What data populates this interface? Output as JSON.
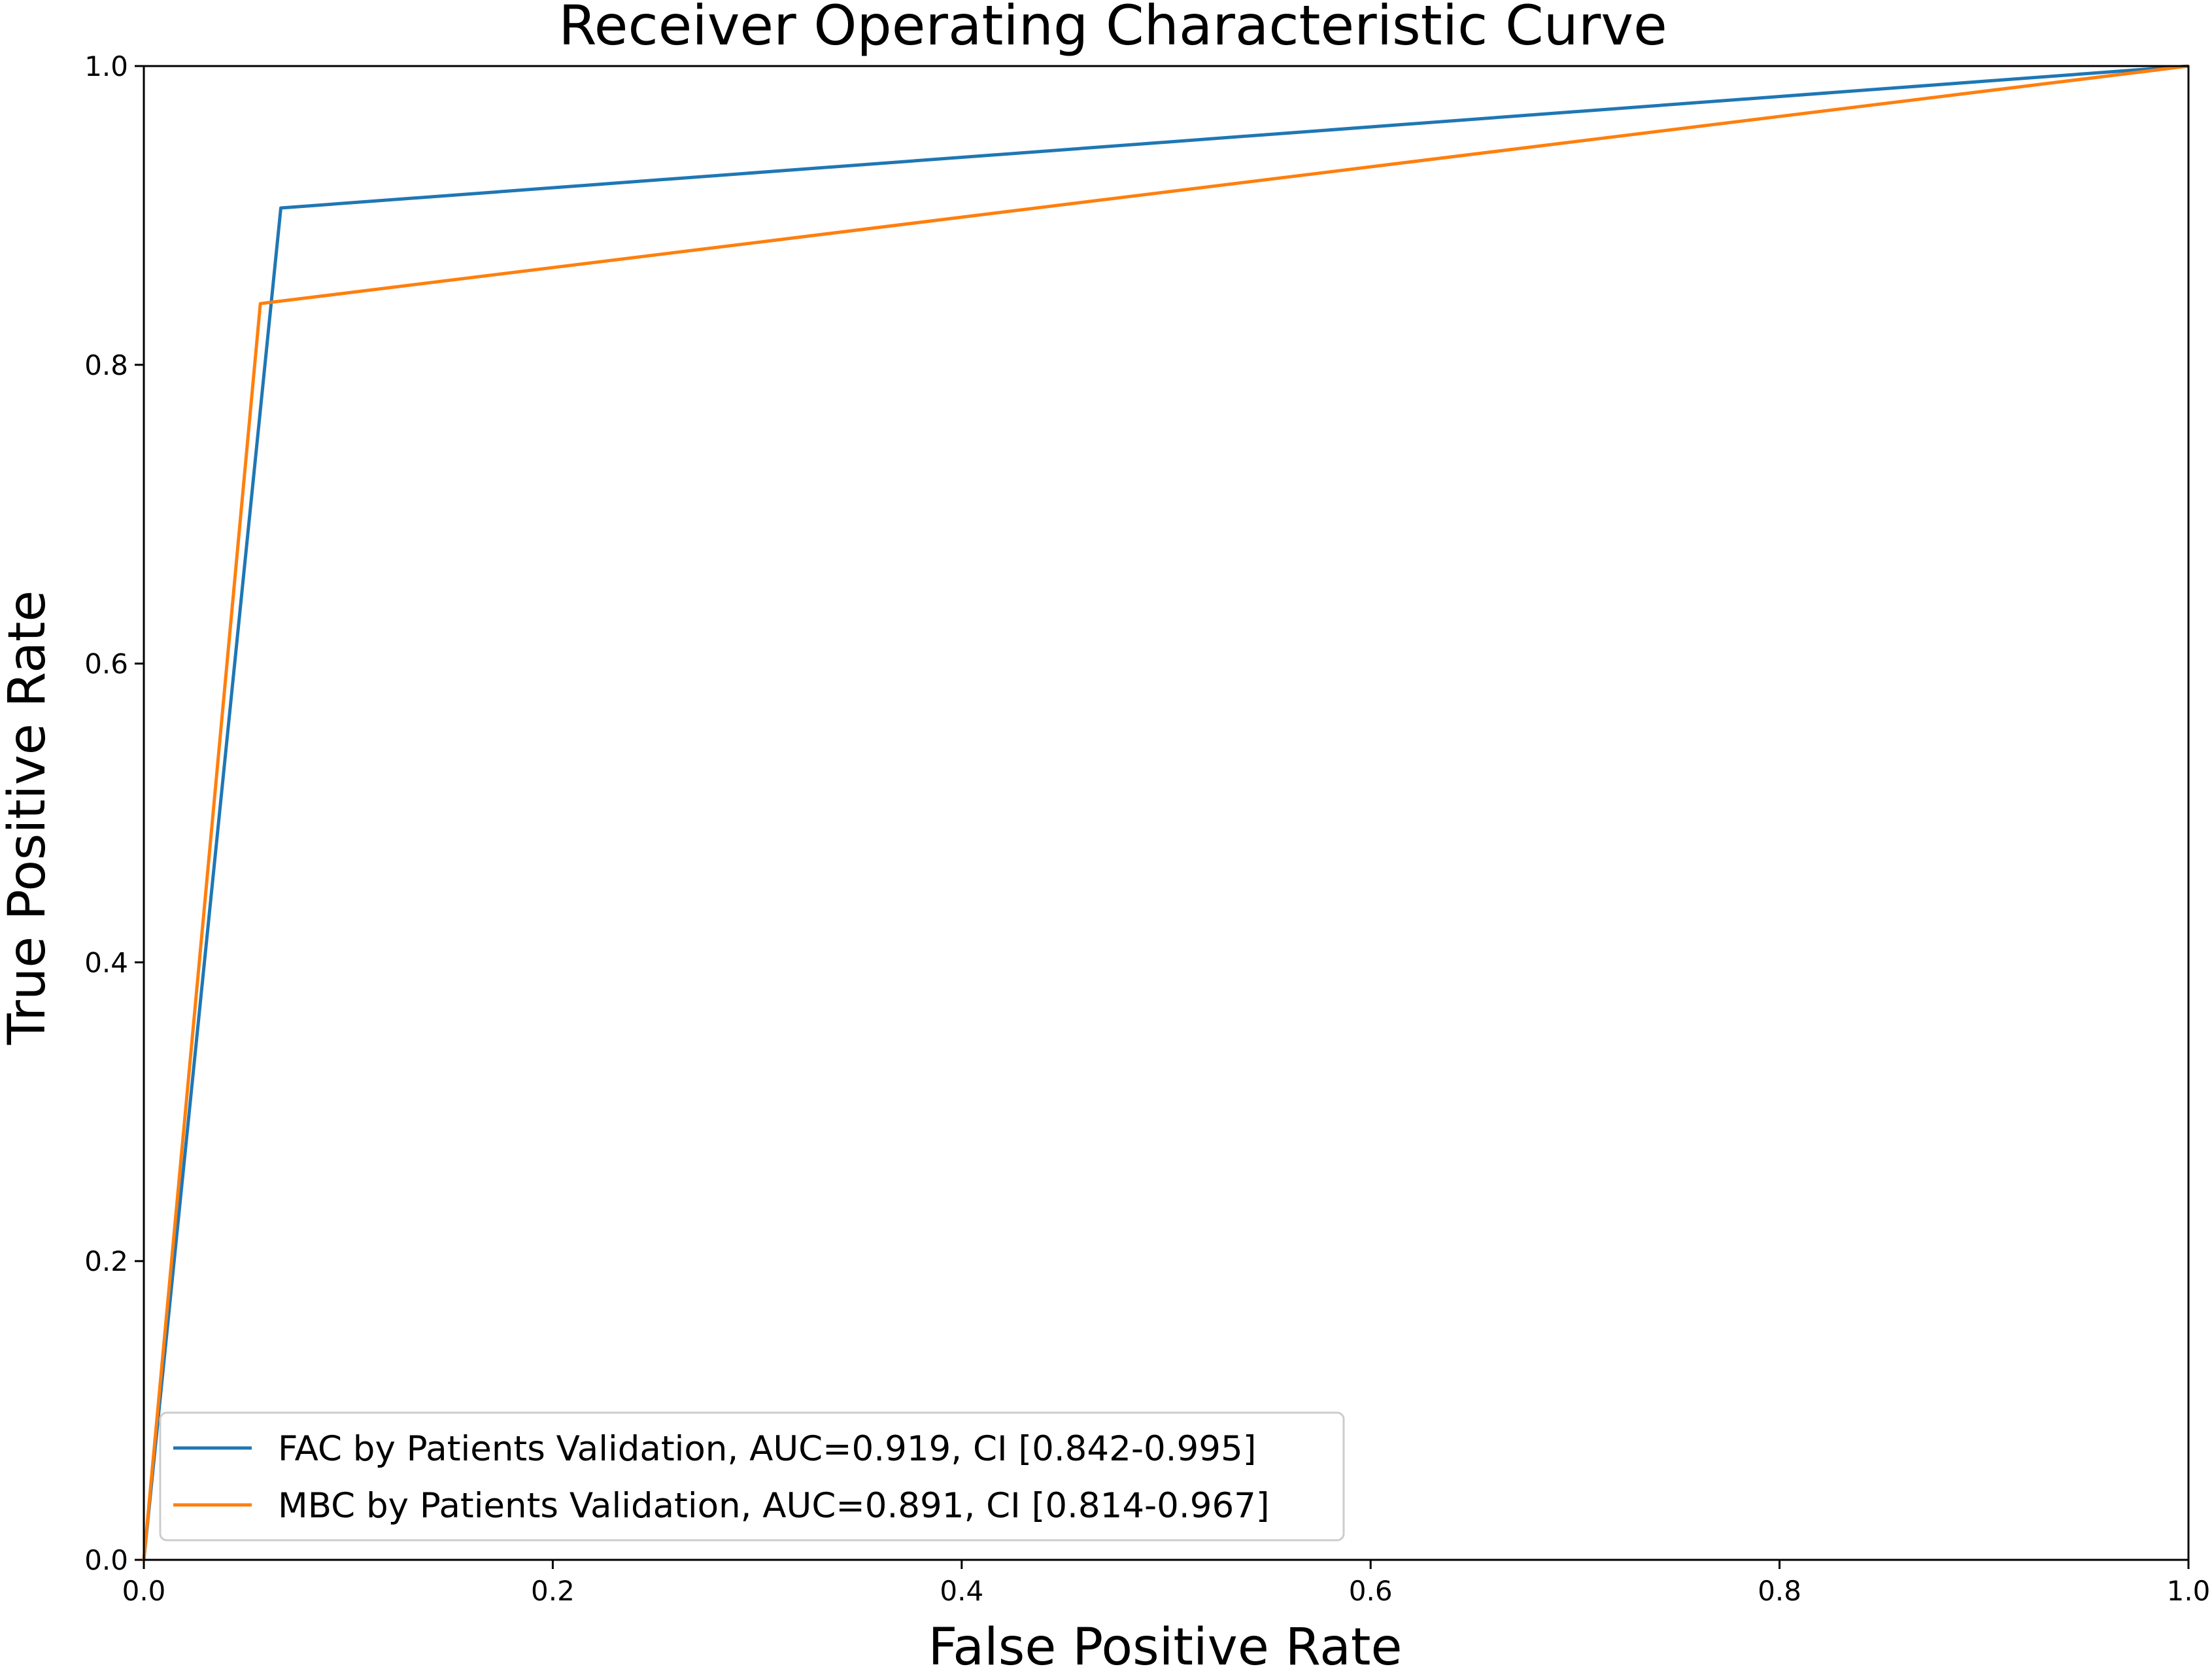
{
  "chart_data": {
    "type": "line",
    "title": "Receiver Operating Characteristic Curve",
    "xlabel": "False Positive Rate",
    "ylabel": "True Positive Rate",
    "xlim": [
      0,
      1
    ],
    "ylim": [
      0,
      1
    ],
    "xticks": [
      "0.0",
      "0.2",
      "0.4",
      "0.6",
      "0.8",
      "1.0"
    ],
    "yticks": [
      "0.0",
      "0.2",
      "0.4",
      "0.6",
      "0.8",
      "1.0"
    ],
    "grid": false,
    "legend_position": "lower-left",
    "series": [
      {
        "name": "FAC by Patients Validation, AUC=0.919, CI [0.842-0.995]",
        "color": "#1f77b4",
        "x": [
          0.0,
          0.067,
          1.0
        ],
        "y": [
          0.0,
          0.905,
          1.0
        ]
      },
      {
        "name": "MBC by Patients Validation, AUC=0.891, CI [0.814-0.967]",
        "color": "#ff7f0e",
        "x": [
          0.0,
          0.057,
          1.0
        ],
        "y": [
          0.0,
          0.841,
          1.0
        ]
      }
    ]
  }
}
